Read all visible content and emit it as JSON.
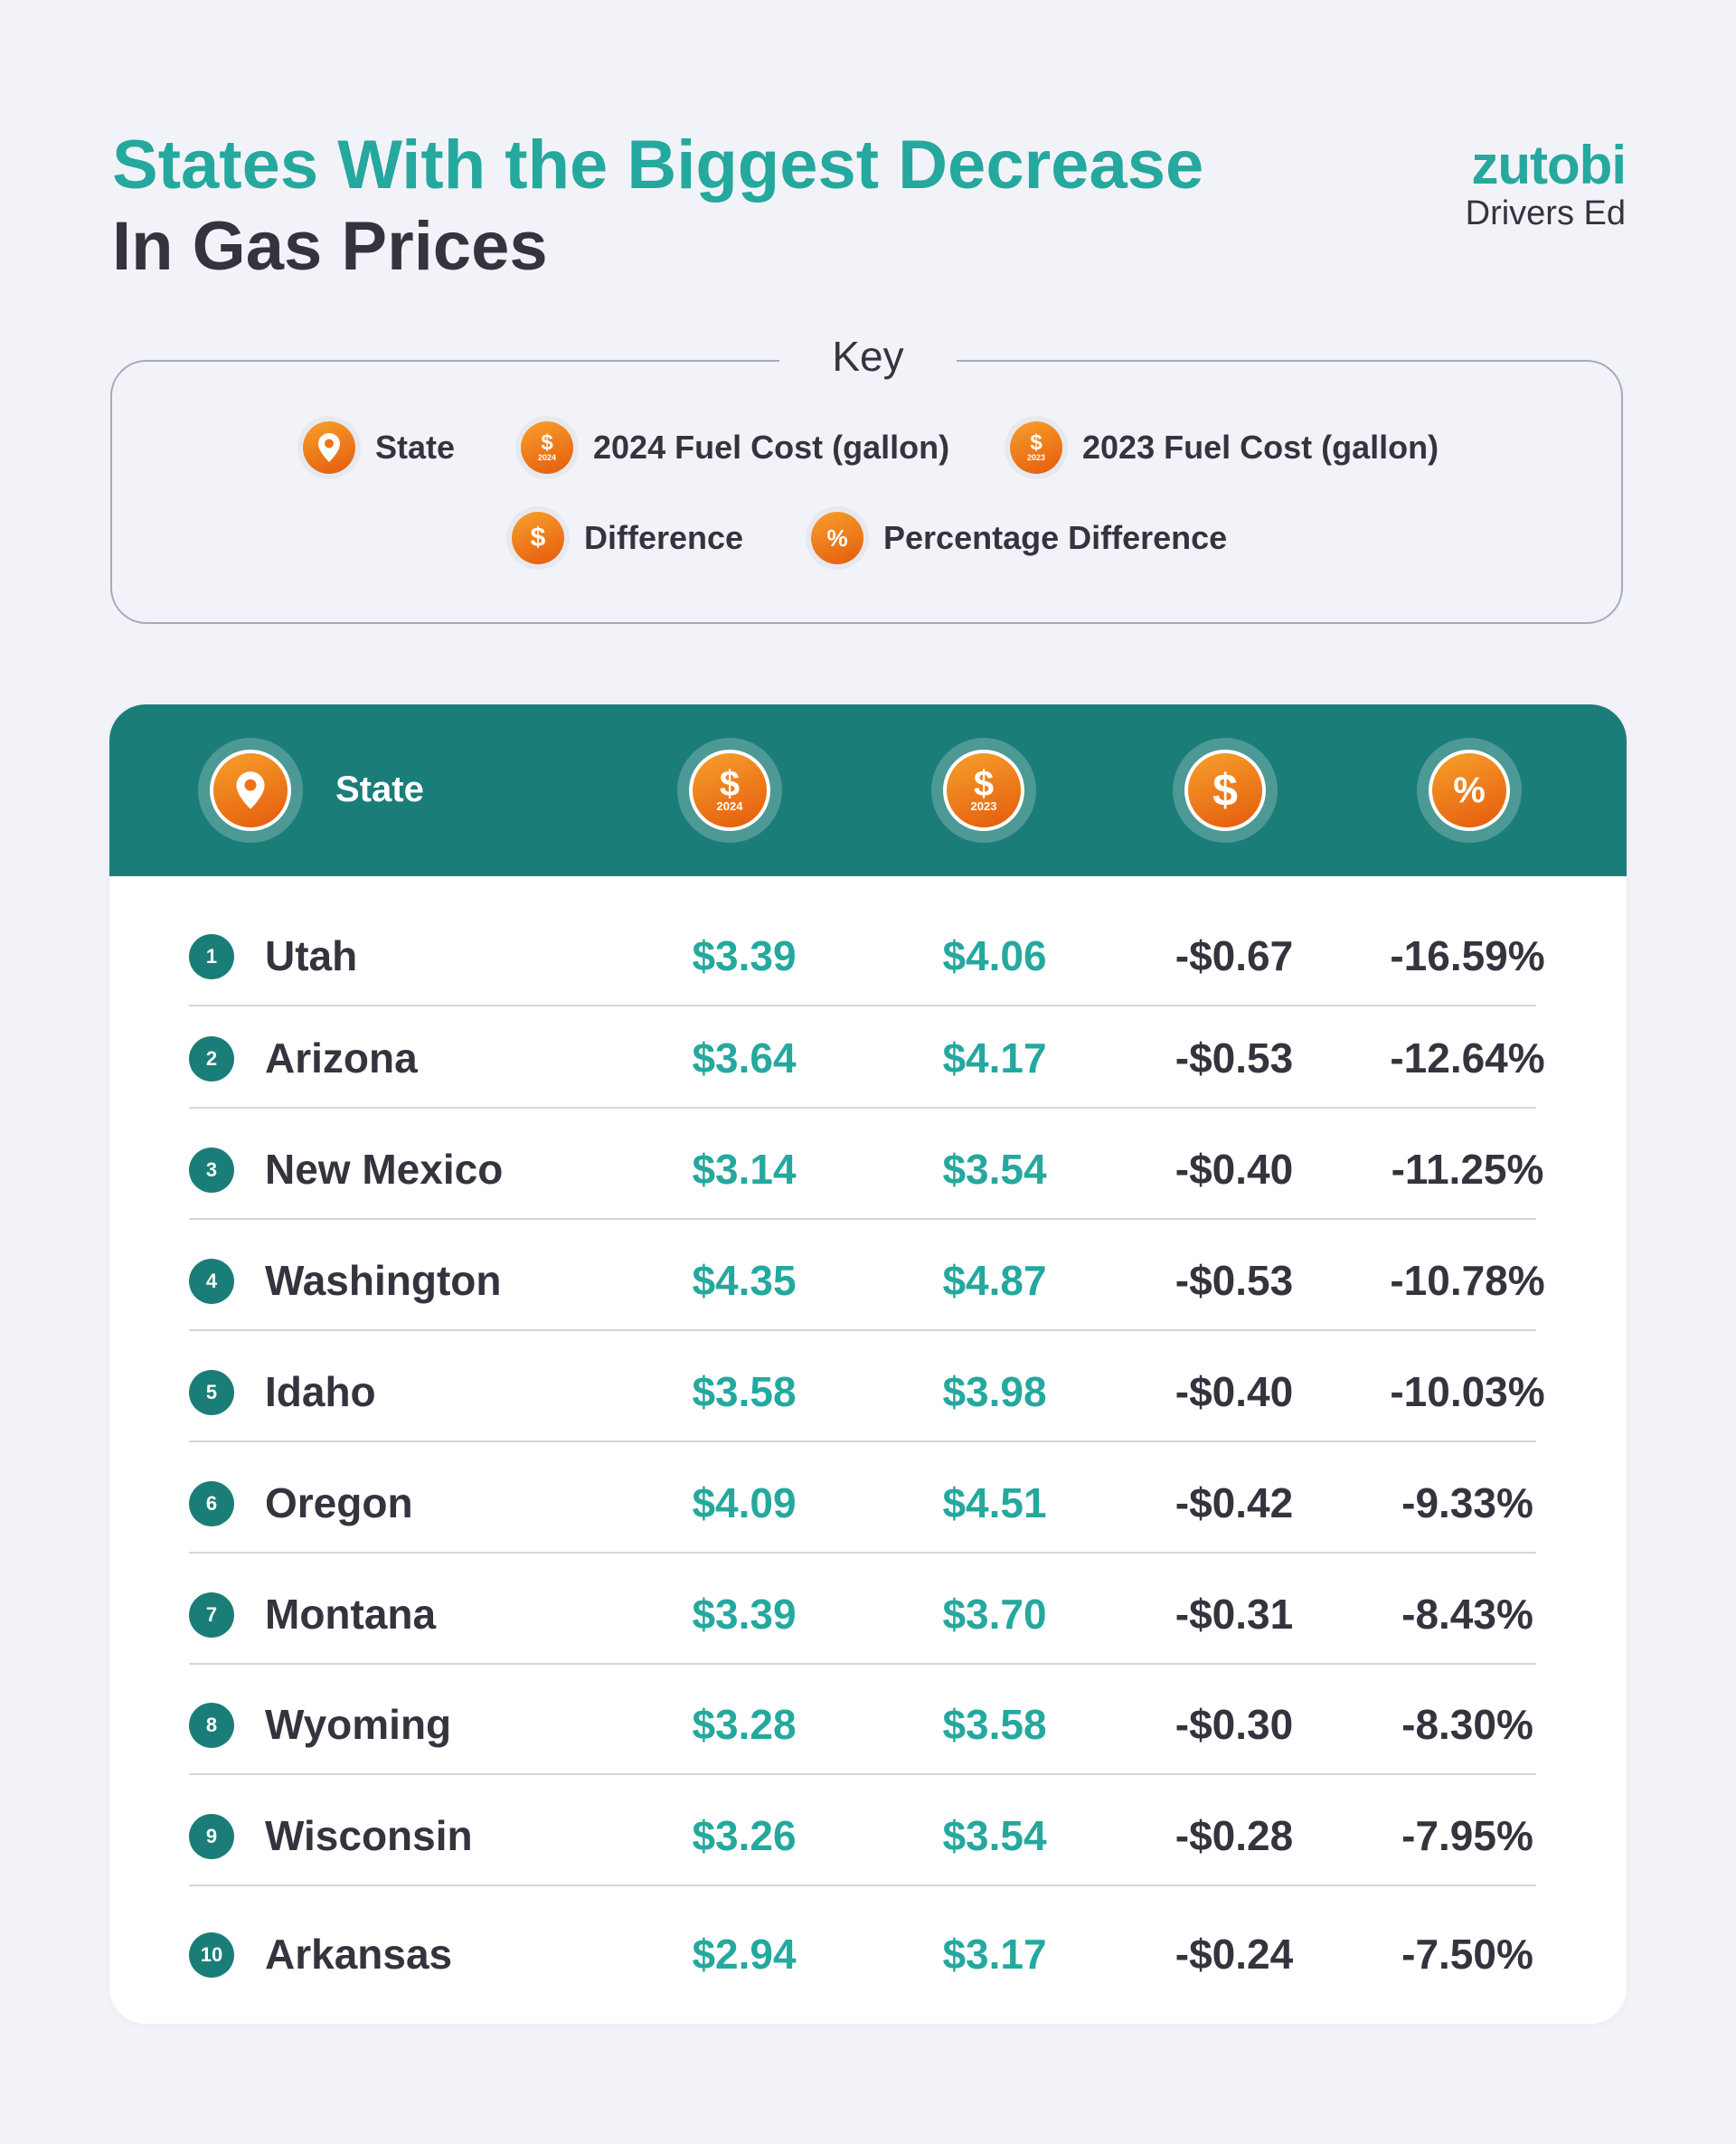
{
  "header": {
    "title_line1": "States With the Biggest Decrease",
    "title_line2": "In Gas Prices",
    "logo_name": "zutobi",
    "logo_sub": "Drivers Ed"
  },
  "key": {
    "title": "Key",
    "items": [
      {
        "icon": "location-pin-icon",
        "label": "State"
      },
      {
        "icon": "dollar-2024-icon",
        "label": "2024 Fuel Cost (gallon)",
        "year": "2024"
      },
      {
        "icon": "dollar-2023-icon",
        "label": "2023 Fuel Cost (gallon)",
        "year": "2023"
      },
      {
        "icon": "dollar-icon",
        "label": "Difference"
      },
      {
        "icon": "percent-icon",
        "label": "Percentage Difference"
      }
    ]
  },
  "table": {
    "state_header": "State",
    "icon_years": {
      "y2024": "2024",
      "y2023": "2023"
    },
    "symbols": {
      "dollar": "$",
      "percent": "%"
    }
  },
  "colors": {
    "teal": "#25a89e",
    "header_teal": "#1b7d78",
    "orange": "#ef7d1c",
    "dark_text": "#34343e",
    "background": "#f2f3f8"
  },
  "chart_data": {
    "type": "table",
    "title": "States With the Biggest Decrease In Gas Prices",
    "columns": [
      "Rank",
      "State",
      "2024 Fuel Cost (gallon)",
      "2023 Fuel Cost (gallon)",
      "Difference",
      "Percentage Difference"
    ],
    "rows": [
      {
        "rank": "1",
        "state": "Utah",
        "cost_2024": "$3.39",
        "cost_2023": "$4.06",
        "difference": "-$0.67",
        "percent": "-16.59%"
      },
      {
        "rank": "2",
        "state": "Arizona",
        "cost_2024": "$3.64",
        "cost_2023": "$4.17",
        "difference": "-$0.53",
        "percent": "-12.64%"
      },
      {
        "rank": "3",
        "state": "New Mexico",
        "cost_2024": "$3.14",
        "cost_2023": "$3.54",
        "difference": "-$0.40",
        "percent": "-11.25%"
      },
      {
        "rank": "4",
        "state": "Washington",
        "cost_2024": "$4.35",
        "cost_2023": "$4.87",
        "difference": "-$0.53",
        "percent": "-10.78%"
      },
      {
        "rank": "5",
        "state": "Idaho",
        "cost_2024": "$3.58",
        "cost_2023": "$3.98",
        "difference": "-$0.40",
        "percent": "-10.03%"
      },
      {
        "rank": "6",
        "state": "Oregon",
        "cost_2024": "$4.09",
        "cost_2023": "$4.51",
        "difference": "-$0.42",
        "percent": "-9.33%"
      },
      {
        "rank": "7",
        "state": "Montana",
        "cost_2024": "$3.39",
        "cost_2023": "$3.70",
        "difference": "-$0.31",
        "percent": "-8.43%"
      },
      {
        "rank": "8",
        "state": "Wyoming",
        "cost_2024": "$3.28",
        "cost_2023": "$3.58",
        "difference": "-$0.30",
        "percent": "-8.30%"
      },
      {
        "rank": "9",
        "state": "Wisconsin",
        "cost_2024": "$3.26",
        "cost_2023": "$3.54",
        "difference": "-$0.28",
        "percent": "-7.95%"
      },
      {
        "rank": "10",
        "state": "Arkansas",
        "cost_2024": "$2.94",
        "cost_2023": "$3.17",
        "difference": "-$0.24",
        "percent": "-7.50%"
      }
    ]
  }
}
